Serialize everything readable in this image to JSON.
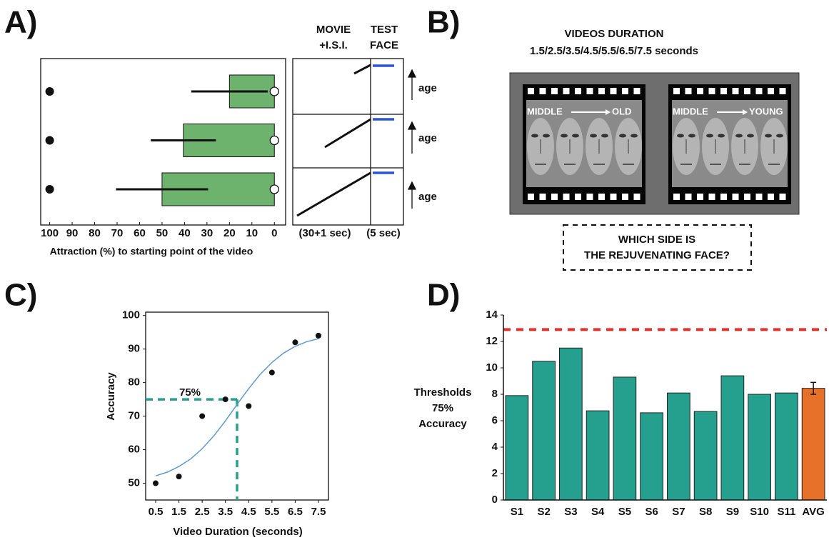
{
  "panel_labels": [
    "A)",
    "B)",
    "C)",
    "D)"
  ],
  "chart_data": [
    {
      "type": "hbar",
      "values": [
        20,
        40.5,
        50
      ],
      "errors": [
        17,
        14.5,
        20.5
      ],
      "color": "#6db36d",
      "start_markers": [
        100,
        100,
        100
      ],
      "end_markers": [
        0,
        0,
        0
      ],
      "xlim": [
        104,
        -5
      ],
      "xticks": [
        100,
        90,
        80,
        70,
        60,
        50,
        40,
        30,
        20,
        10,
        0
      ],
      "xlabel": "Attraction (%) to starting point of the video"
    },
    {
      "type": "scatter",
      "x": [
        0.5,
        1.5,
        2.5,
        3.5,
        4.5,
        5.5,
        6.5,
        7.5
      ],
      "values": [
        50,
        52,
        70,
        75,
        73,
        83,
        92,
        94
      ],
      "fit": {
        "x": [
          0.5,
          1,
          1.5,
          2,
          2.5,
          3,
          3.5,
          4,
          4.5,
          5,
          5.5,
          6,
          6.5,
          7,
          7.5
        ],
        "y": [
          52.2,
          53.3,
          55,
          57.2,
          60.3,
          64.1,
          68.6,
          73.5,
          78.2,
          82.5,
          86,
          88.8,
          90.8,
          92.2,
          93.1
        ],
        "color": "#5b9bd5"
      },
      "threshold": {
        "x": 4.0,
        "y": 75,
        "label": "75%",
        "color": "#26a08e"
      },
      "xlim": [
        0.07,
        7.93
      ],
      "ylim": [
        45,
        101
      ],
      "xticks": [
        0.5,
        1.5,
        2.5,
        3.5,
        4.5,
        5.5,
        6.5,
        7.5
      ],
      "yticks": [
        50,
        60,
        70,
        80,
        90,
        100
      ],
      "xlabel": "Video Duration (seconds)",
      "ylabel": "Accuracy"
    },
    {
      "type": "bar",
      "categories": [
        "S1",
        "S2",
        "S3",
        "S4",
        "S5",
        "S6",
        "S7",
        "S8",
        "S9",
        "S10",
        "S11",
        "AVG"
      ],
      "values": [
        7.9,
        10.5,
        11.5,
        6.75,
        9.3,
        6.6,
        8.1,
        6.7,
        9.4,
        8.0,
        8.1,
        8.45
      ],
      "errors": [
        null,
        null,
        null,
        null,
        null,
        null,
        null,
        null,
        null,
        null,
        null,
        0.45
      ],
      "colors": [
        "#26a08e",
        "#26a08e",
        "#26a08e",
        "#26a08e",
        "#26a08e",
        "#26a08e",
        "#26a08e",
        "#26a08e",
        "#26a08e",
        "#26a08e",
        "#26a08e",
        "#e8712a"
      ],
      "reference_line": {
        "value": 12.9,
        "color": "#e8302a"
      },
      "ylim": [
        0,
        14
      ],
      "yticks": [
        0,
        2,
        4,
        6,
        8,
        10,
        12,
        14
      ],
      "ylabel": [
        "Thresholds",
        "75%",
        "Accuracy"
      ]
    }
  ],
  "panel_a_schematic": {
    "headers": [
      [
        "MOVIE",
        "+I.S.I."
      ],
      [
        "TEST",
        "FACE"
      ]
    ],
    "durations": [
      "(30+1 sec)",
      "(5 sec)"
    ],
    "arrow_labels": [
      "age",
      "age",
      "age"
    ]
  },
  "panel_b": {
    "title": "VIDEOS DURATION",
    "subtitle": "1.5/2.5/3.5/4.5/5.5/6.5/7.5 seconds",
    "strips": [
      {
        "from": "MIDDLE",
        "to": "OLD"
      },
      {
        "from": "MIDDLE",
        "to": "YOUNG"
      }
    ],
    "question": [
      "WHICH SIDE IS",
      "THE REJUVENATING FACE?"
    ]
  }
}
